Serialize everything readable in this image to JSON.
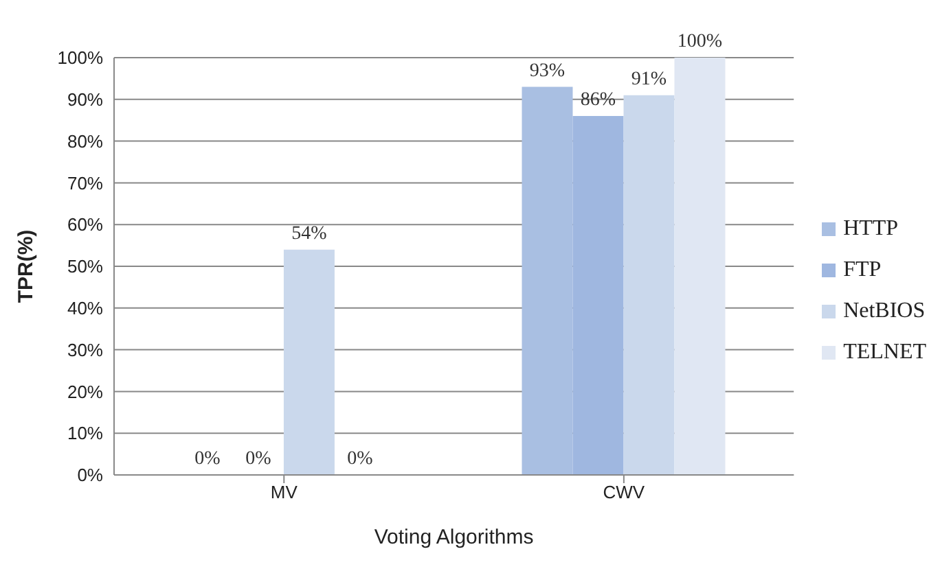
{
  "chart_data": {
    "type": "bar",
    "xlabel": "Voting Algorithms",
    "ylabel": "TPR(%)",
    "categories": [
      "MV",
      "CWV"
    ],
    "series": [
      {
        "name": "HTTP",
        "color": "#a9bfe2",
        "values": [
          0,
          93
        ],
        "value_labels": [
          "0%",
          "93%"
        ]
      },
      {
        "name": "FTP",
        "color": "#9fb7e0",
        "values": [
          0,
          86
        ],
        "value_labels": [
          "0%",
          "86%"
        ]
      },
      {
        "name": "NetBIOS",
        "color": "#cad8ec",
        "values": [
          54,
          91
        ],
        "value_labels": [
          "54%",
          "91%"
        ]
      },
      {
        "name": "TELNET",
        "color": "#e0e7f3",
        "values": [
          0,
          100
        ],
        "value_labels": [
          "0%",
          "100%"
        ]
      }
    ],
    "ylim": [
      0,
      100
    ],
    "yticks": [
      {
        "value": 0,
        "label": "0%"
      },
      {
        "value": 10,
        "label": "10%"
      },
      {
        "value": 20,
        "label": "20%"
      },
      {
        "value": 30,
        "label": "30%"
      },
      {
        "value": 40,
        "label": "40%"
      },
      {
        "value": 50,
        "label": "50%"
      },
      {
        "value": 60,
        "label": "60%"
      },
      {
        "value": 70,
        "label": "70%"
      },
      {
        "value": 80,
        "label": "80%"
      },
      {
        "value": 90,
        "label": "90%"
      },
      {
        "value": 100,
        "label": "100%"
      }
    ],
    "grid": "y",
    "legend": "right"
  }
}
